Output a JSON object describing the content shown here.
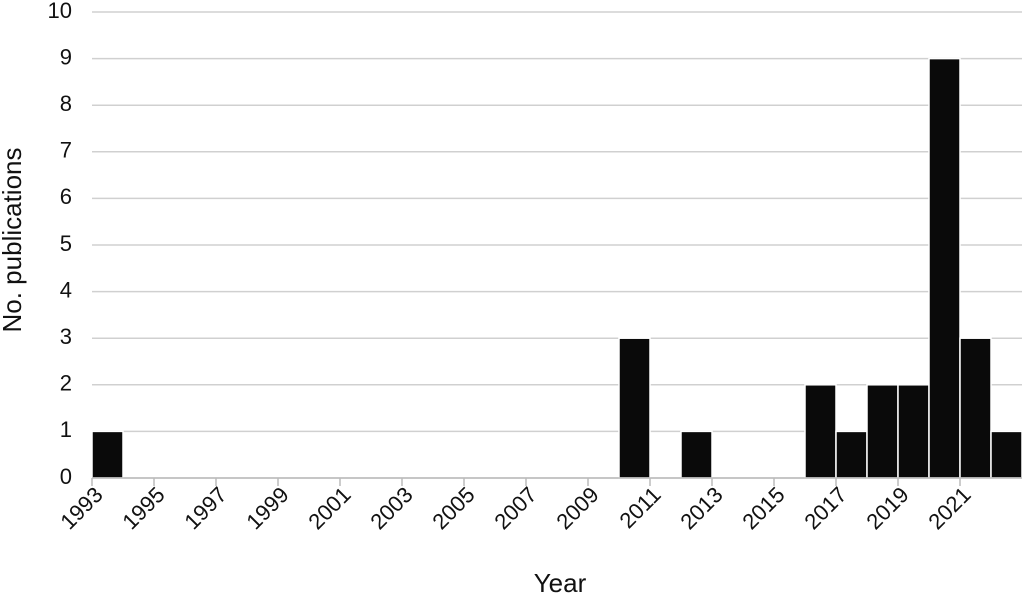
{
  "chart_data": {
    "type": "histogram",
    "x_label": "Year",
    "y_label": "No. publications",
    "bins": [
      1993,
      1994,
      1995,
      1996,
      1997,
      1998,
      1999,
      2000,
      2001,
      2002,
      2003,
      2004,
      2005,
      2006,
      2007,
      2008,
      2009,
      2010,
      2011,
      2012,
      2013,
      2014,
      2015,
      2016,
      2017,
      2018,
      2019,
      2020,
      2021,
      2022,
      2023
    ],
    "values": [
      1,
      0,
      0,
      0,
      0,
      0,
      0,
      0,
      0,
      0,
      0,
      0,
      0,
      0,
      0,
      0,
      0,
      3,
      0,
      1,
      0,
      0,
      0,
      2,
      1,
      2,
      2,
      9,
      3,
      1
    ],
    "color": "#0a0a0a",
    "xlim": [
      1993,
      2023
    ],
    "xticks": [
      1993,
      1995,
      1997,
      1999,
      2001,
      2003,
      2005,
      2007,
      2009,
      2011,
      2013,
      2015,
      2017,
      2019,
      2021
    ],
    "ylim": [
      0,
      10
    ],
    "yticks": [
      0,
      1,
      2,
      3,
      4,
      5,
      6,
      7,
      8,
      9,
      10
    ],
    "grid": true
  }
}
